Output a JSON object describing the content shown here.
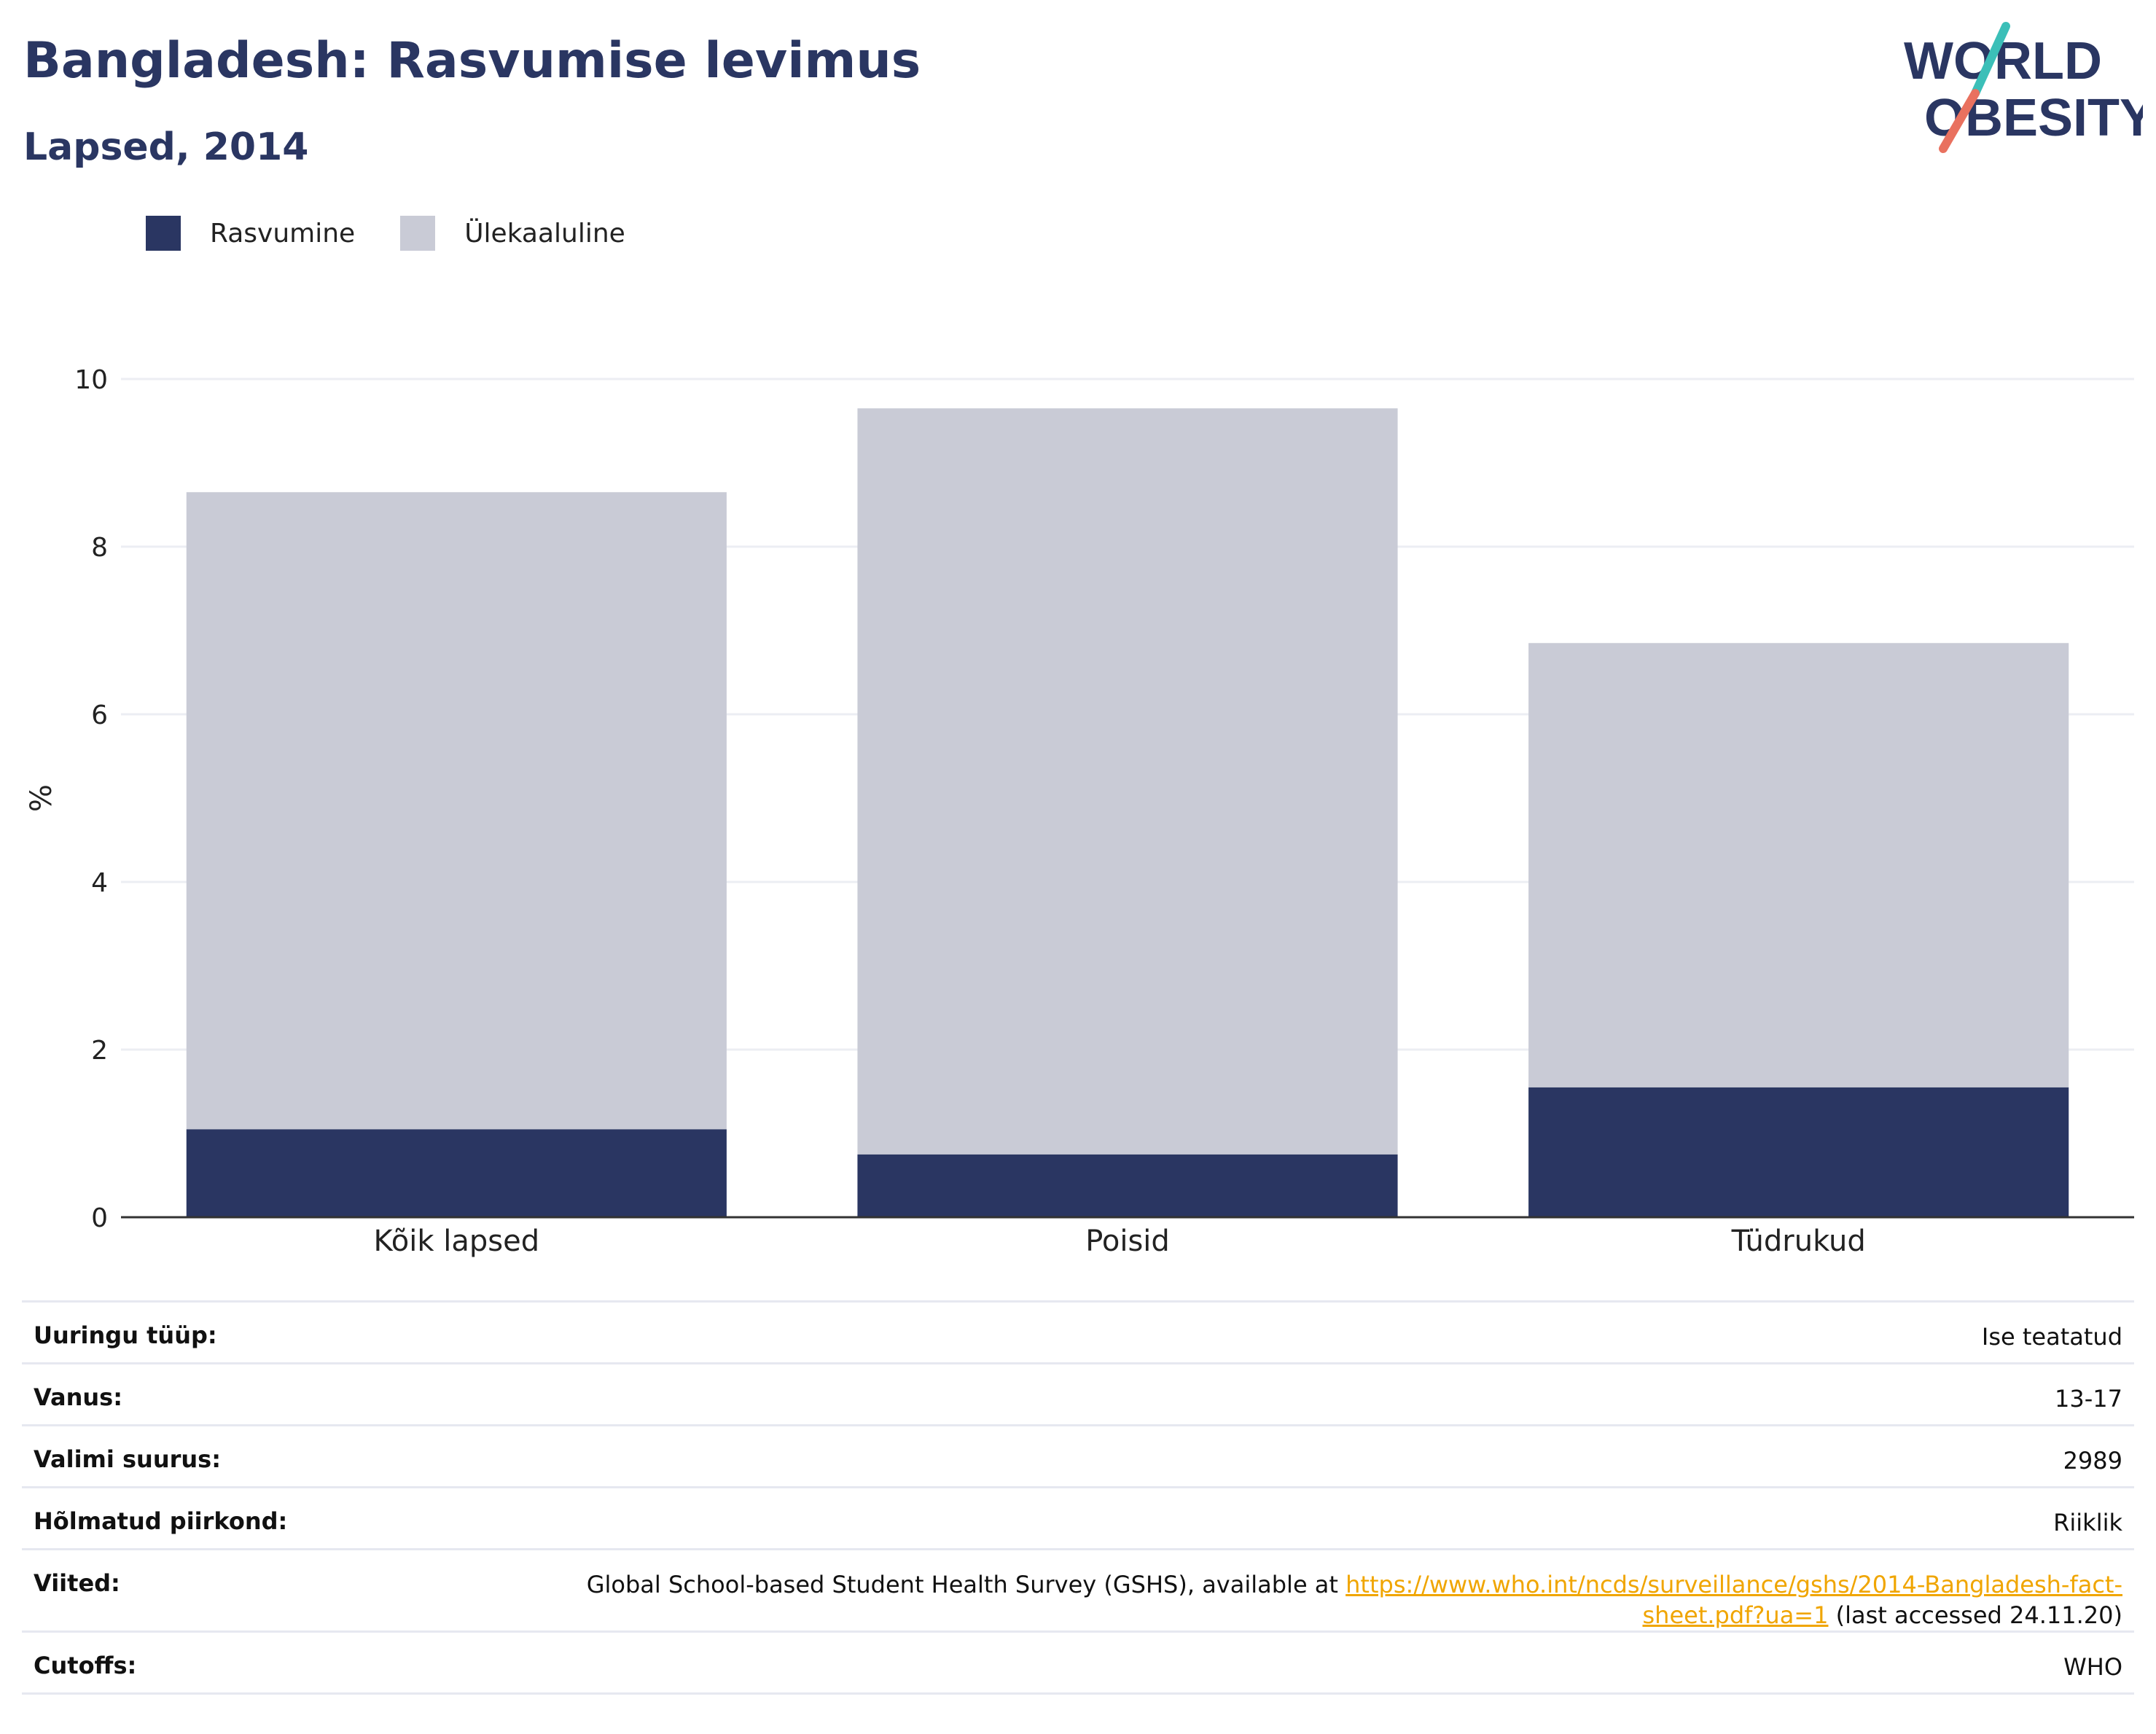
{
  "header": {
    "title": "Bangladesh: Rasvumise levimus",
    "subtitle": "Lapsed, 2014"
  },
  "logo": {
    "line1": "WORLD",
    "line2": "OBESITY"
  },
  "colors": {
    "navy": "#2a3662",
    "grey": "#c9cbd6",
    "accent_teal": "#3bbfb8",
    "accent_coral": "#e9715f",
    "link": "#f0a500"
  },
  "chart_data": {
    "type": "bar",
    "stacked": true,
    "categories": [
      "Kõik lapsed",
      "Poisid",
      "Tüdrukud"
    ],
    "series": [
      {
        "name": "Rasvumine",
        "values": [
          1.05,
          0.75,
          1.55
        ],
        "color": "#2a3662"
      },
      {
        "name": "Ülekaaluline",
        "values": [
          7.6,
          8.9,
          5.3
        ],
        "color": "#c9cbd6"
      }
    ],
    "ylabel": "%",
    "ylim": [
      0,
      10
    ],
    "yticks": [
      0,
      2,
      4,
      6,
      8,
      10
    ],
    "grid": true,
    "legend": "top-left"
  },
  "meta": {
    "rows": [
      {
        "key": "Uuringu tüüp:",
        "value": "Ise teatatud"
      },
      {
        "key": "Vanus:",
        "value": "13-17"
      },
      {
        "key": "Valimi suurus:",
        "value": "2989"
      },
      {
        "key": "Hõlmatud piirkond:",
        "value": "Riiklik"
      }
    ],
    "references": {
      "key": "Viited:",
      "text_before": "Global School-based Student Health Survey (GSHS), available at ",
      "link_line1": "https://www.who.int/ncds/surveillance/gshs/2014-Bangladesh-fact-",
      "link_line2": "sheet.pdf?ua=1",
      "text_after": " (last accessed 24.11.20)"
    },
    "cutoffs": {
      "key": "Cutoffs:",
      "value": "WHO"
    }
  }
}
